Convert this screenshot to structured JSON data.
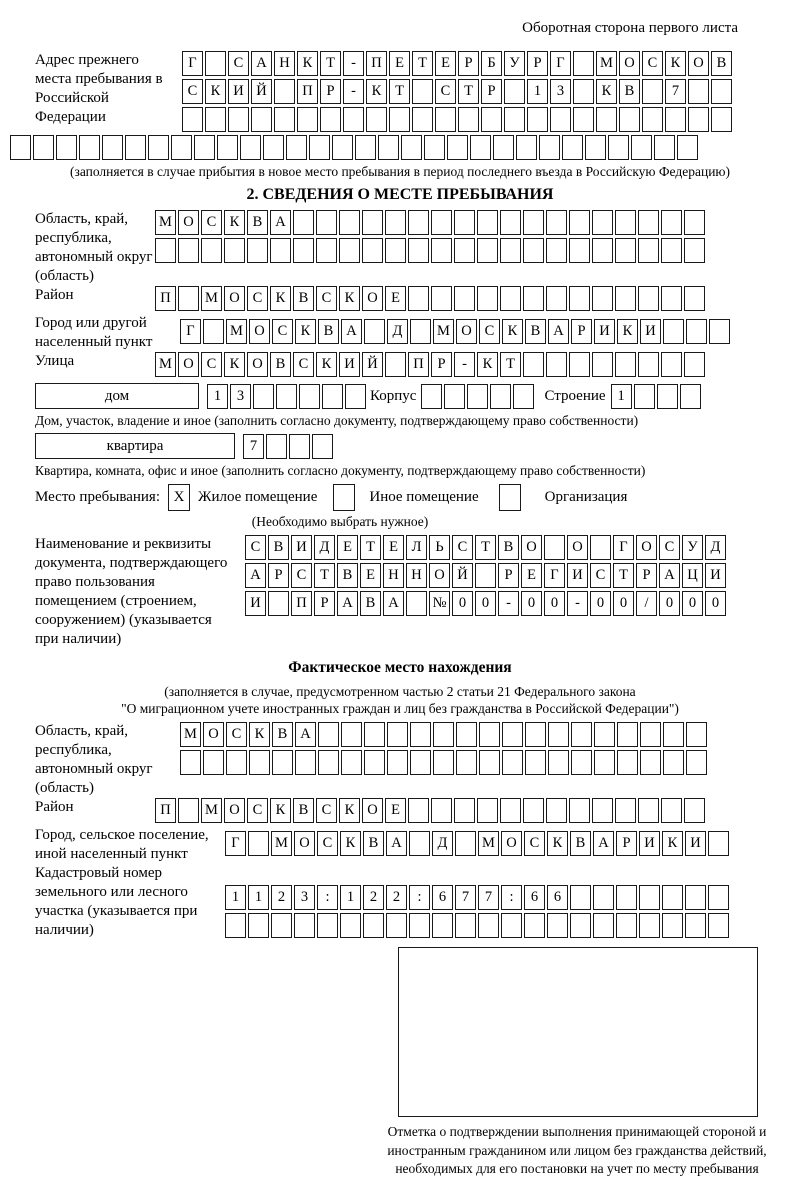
{
  "page": {
    "header_note": "Оборотная сторона первого листа"
  },
  "block_prev_address": {
    "label": "Адрес прежнего места пребывания в Российской Федерации",
    "rows": [
      "Г_САНКТ-ПЕТЕРБУРГ_МОСКОВ",
      "СКИЙ_ПР-КТ_СТР_13_КВ_7__",
      "________________________"
    ],
    "row_full": "______________________________",
    "caption": "(заполняется в случае прибытия в новое место пребывания в период последнего въезда в Российскую Федерацию)"
  },
  "section2": {
    "title": "2. СВЕДЕНИЯ О МЕСТЕ ПРЕБЫВАНИЯ",
    "region": {
      "label": "Область, край, республика, автономный округ (область)",
      "rows": [
        "МОСКВА__________________",
        "________________________"
      ]
    },
    "district": {
      "label": "Район",
      "row": "П_МОСКВСКОЕ_____________"
    },
    "city": {
      "label": "Город или другой населенный пункт",
      "row": "Г_МОСКВА_Д_МОСКВАРИКИ___"
    },
    "street": {
      "label": "Улица",
      "row": "МОСКОВСКИЙ_ПР-КТ________"
    },
    "house": {
      "box_label": "дом",
      "cells": "13_____",
      "korpus_label": "Корпус",
      "korpus_cells": "_____",
      "stroenie_label": "Строение",
      "stroenie_cells": "1___",
      "caption": "Дом, участок, владение и иное (заполнить согласно документу, подтверждающему право собственности)"
    },
    "apartment": {
      "box_label": "квартира",
      "cells": "7___",
      "caption": "Квартира, комната, офис и иное (заполнить согласно документу, подтверждающему право собственности)"
    },
    "stay_type": {
      "label": "Место пребывания:",
      "options": [
        {
          "label": "Жилое помещение",
          "mark": "X"
        },
        {
          "label": "Иное помещение",
          "mark": ""
        },
        {
          "label": "Организация",
          "mark": ""
        }
      ],
      "note": "(Необходимо выбрать нужное)"
    },
    "document": {
      "label": "Наименование и реквизиты документа, подтверждающего право пользования помещением (строением, сооружением) (указывается при наличии)",
      "rows": [
        "СВИДЕТЕЛЬСТВО_О_ГОСУД",
        "АРСТВЕННОЙ_РЕГИСТРАЦИ",
        "И_ПРАВА_№00-00-00/000"
      ]
    }
  },
  "section_actual": {
    "title": "Фактическое место нахождения",
    "subtitle_line1": "(заполняется в случае, предусмотренном частью 2 статьи 21 Федерального закона",
    "subtitle_line2": "\"О миграционном учете иностранных граждан и лиц без гражданства в Российской Федерации\")",
    "region": {
      "label": "Область, край, республика, автономный округ (область)",
      "rows": [
        "МОСКВА_________________",
        "_______________________"
      ]
    },
    "district": {
      "label": "Район",
      "row": "П_МОСКВСКОЕ_____________"
    },
    "city": {
      "label": "Город, сельское поселение, иной населенный пункт",
      "row": "Г_МОСКВА_Д_МОСКВАРИКИ_"
    },
    "cadastral": {
      "label": "Кадастровый номер земельного или лесного участка (указывается при наличии)",
      "rows": [
        "1123:122:677:66_______",
        "______________________"
      ]
    }
  },
  "stamp_box": {
    "caption": "Отметка о подтверждении выполнения принимающей стороной и иностранным гражданином или лицом без гражданства действий, необходимых для его постановки на учет по месту пребывания"
  }
}
